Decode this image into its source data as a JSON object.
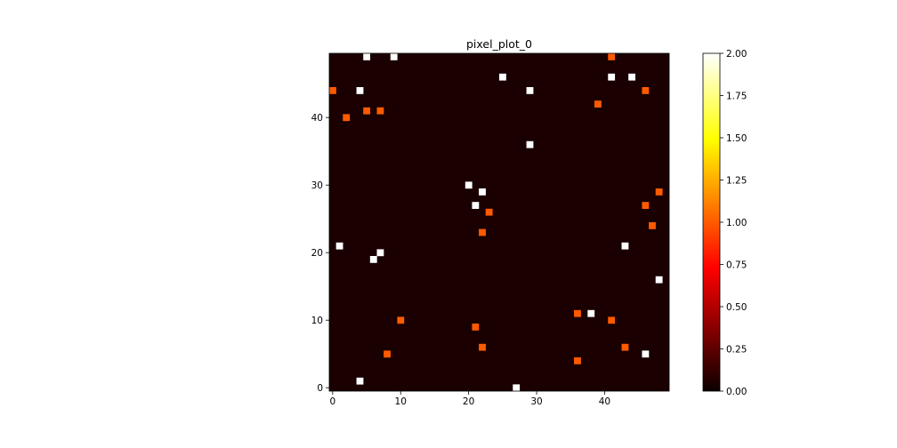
{
  "chart_data": {
    "type": "heatmap",
    "title": "pixel_plot_0",
    "xlabel": "",
    "ylabel": "",
    "grid_size": [
      50,
      50
    ],
    "xlim": [
      -0.5,
      49.5
    ],
    "ylim": [
      -0.5,
      49.5
    ],
    "x_ticks": [
      0,
      10,
      20,
      30,
      40
    ],
    "y_ticks": [
      0,
      10,
      20,
      30,
      40
    ],
    "background_value": 0,
    "colormap": "hot",
    "colorbar": {
      "vmin": 0,
      "vmax": 2,
      "ticks": [
        "0.00",
        "0.25",
        "0.50",
        "0.75",
        "1.00",
        "1.25",
        "1.50",
        "1.75",
        "2.00"
      ]
    },
    "cells": [
      {
        "x": 5,
        "y": 49,
        "value": 2
      },
      {
        "x": 9,
        "y": 49,
        "value": 2
      },
      {
        "x": 41,
        "y": 49,
        "value": 1
      },
      {
        "x": 25,
        "y": 46,
        "value": 2
      },
      {
        "x": 41,
        "y": 46,
        "value": 2
      },
      {
        "x": 44,
        "y": 46,
        "value": 2
      },
      {
        "x": 0,
        "y": 44,
        "value": 1
      },
      {
        "x": 4,
        "y": 44,
        "value": 2
      },
      {
        "x": 29,
        "y": 44,
        "value": 2
      },
      {
        "x": 46,
        "y": 44,
        "value": 1
      },
      {
        "x": 39,
        "y": 42,
        "value": 1
      },
      {
        "x": 5,
        "y": 41,
        "value": 1
      },
      {
        "x": 7,
        "y": 41,
        "value": 1
      },
      {
        "x": 2,
        "y": 40,
        "value": 1
      },
      {
        "x": 29,
        "y": 36,
        "value": 2
      },
      {
        "x": 20,
        "y": 30,
        "value": 2
      },
      {
        "x": 22,
        "y": 29,
        "value": 2
      },
      {
        "x": 48,
        "y": 29,
        "value": 1
      },
      {
        "x": 21,
        "y": 27,
        "value": 2
      },
      {
        "x": 46,
        "y": 27,
        "value": 1
      },
      {
        "x": 23,
        "y": 26,
        "value": 1
      },
      {
        "x": 47,
        "y": 24,
        "value": 1
      },
      {
        "x": 22,
        "y": 23,
        "value": 1
      },
      {
        "x": 1,
        "y": 21,
        "value": 2
      },
      {
        "x": 43,
        "y": 21,
        "value": 2
      },
      {
        "x": 7,
        "y": 20,
        "value": 2
      },
      {
        "x": 6,
        "y": 19,
        "value": 2
      },
      {
        "x": 48,
        "y": 16,
        "value": 2
      },
      {
        "x": 36,
        "y": 11,
        "value": 1
      },
      {
        "x": 38,
        "y": 11,
        "value": 2
      },
      {
        "x": 10,
        "y": 10,
        "value": 1
      },
      {
        "x": 41,
        "y": 10,
        "value": 1
      },
      {
        "x": 21,
        "y": 9,
        "value": 1
      },
      {
        "x": 22,
        "y": 6,
        "value": 1
      },
      {
        "x": 43,
        "y": 6,
        "value": 1
      },
      {
        "x": 8,
        "y": 5,
        "value": 1
      },
      {
        "x": 46,
        "y": 5,
        "value": 2
      },
      {
        "x": 36,
        "y": 4,
        "value": 1
      },
      {
        "x": 4,
        "y": 1,
        "value": 2
      },
      {
        "x": 27,
        "y": 0,
        "value": 2
      }
    ]
  }
}
